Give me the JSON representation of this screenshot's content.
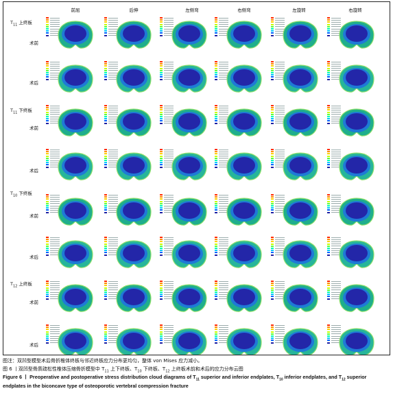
{
  "columns": [
    "前屈",
    "后伸",
    "左侧弯",
    "右侧弯",
    "左旋转",
    "右旋转"
  ],
  "groups": [
    {
      "title": "T",
      "sub": "11",
      "suffix": " 上终板",
      "rows": [
        "术前",
        "术后"
      ]
    },
    {
      "title": "T",
      "sub": "11",
      "suffix": " 下终板",
      "rows": [
        "术前",
        "术后"
      ]
    },
    {
      "title": "T",
      "sub": "10",
      "suffix": " 下终板",
      "rows": [
        "术前",
        "术后"
      ]
    },
    {
      "title": "T",
      "sub": "12",
      "suffix": " 上终板",
      "rows": [
        "术前",
        "术后"
      ]
    }
  ],
  "legend_colors": [
    "#ff2a00",
    "#ff8c00",
    "#ffd000",
    "#c8ff00",
    "#5aff3c",
    "#00ffb4",
    "#00c8ff",
    "#0064ff",
    "#1e1ea0"
  ],
  "caption": {
    "note": "图注：双凹型模型术后骨折椎体终板与邻近终板应力分布更均匀，整体 von Mises 应力减小。",
    "zh_prefix": "图 6 丨双凹型骨质疏松性椎体压缩骨折模型中 T",
    "zh_s1": "11",
    "zh_m1": " 上下终板、T",
    "zh_s2": "10",
    "zh_m2": " 下终板、T",
    "zh_s3": "12",
    "zh_end": " 上终板术前和术后的应力分布云图",
    "en_a": "Figure 6 丨 Preoperative and postoperative stress distribution cloud diagrams of T",
    "en_s1": "11",
    "en_b": " superior and inferior endplates, T",
    "en_s2": "10",
    "en_c": " inferior endplates, and T",
    "en_s3": "12",
    "en_d": " superior endplates in the biconcave type of osteoporotic vertebral compression fracture"
  }
}
